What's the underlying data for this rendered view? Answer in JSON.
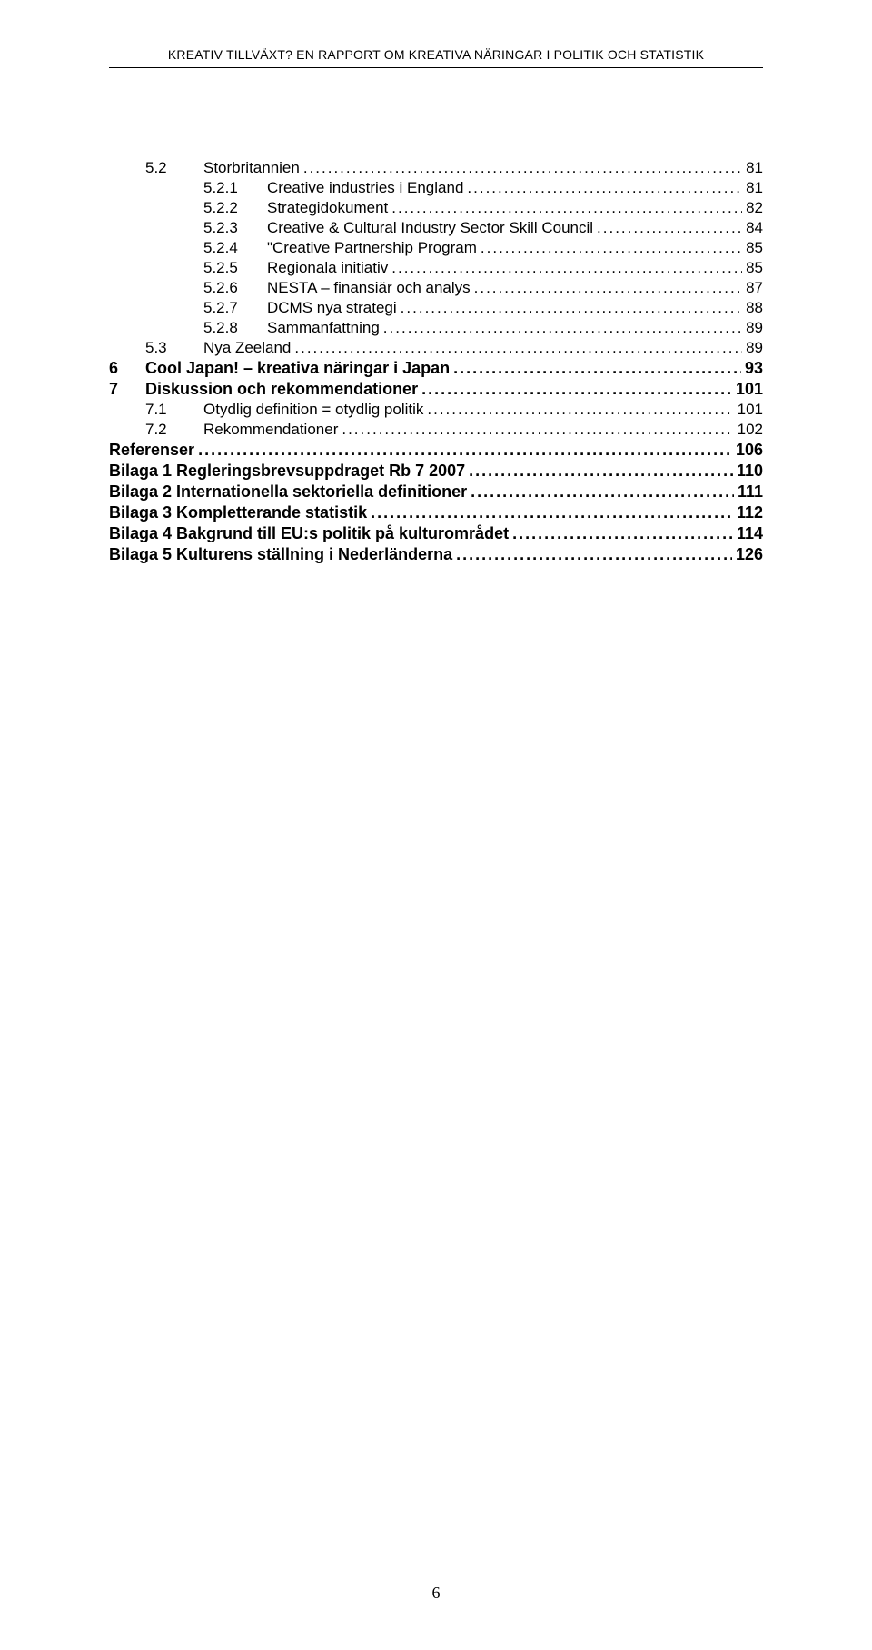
{
  "header": {
    "text": "KREATIV TILLVÄXT? EN RAPPORT OM KREATIVA NÄRINGAR I POLITIK OCH STATISTIK"
  },
  "toc": [
    {
      "level": "lvl2",
      "num": "5.2",
      "title": "Storbritannien",
      "page": "81"
    },
    {
      "level": "lvl3",
      "num": "5.2.1",
      "title": "Creative industries i England",
      "page": "81"
    },
    {
      "level": "lvl3",
      "num": "5.2.2",
      "title": "Strategidokument",
      "page": "82"
    },
    {
      "level": "lvl3",
      "num": "5.2.3",
      "title": "Creative & Cultural Industry Sector Skill Council",
      "page": "84"
    },
    {
      "level": "lvl3",
      "num": "5.2.4",
      "title": "\"Creative Partnership Program",
      "page": "85"
    },
    {
      "level": "lvl3",
      "num": "5.2.5",
      "title": "Regionala initiativ",
      "page": "85"
    },
    {
      "level": "lvl3",
      "num": "5.2.6",
      "title": "NESTA – finansiär och analys",
      "page": "87"
    },
    {
      "level": "lvl3",
      "num": "5.2.7",
      "title": "DCMS nya strategi",
      "page": "88"
    },
    {
      "level": "lvl3",
      "num": "5.2.8",
      "title": "Sammanfattning",
      "page": "89"
    },
    {
      "level": "lvl2",
      "num": "5.3",
      "title": "Nya Zeeland",
      "page": "89"
    },
    {
      "level": "lvl1",
      "num": "6",
      "title": "Cool Japan! – kreativa näringar i Japan",
      "page": "93"
    },
    {
      "level": "lvl1",
      "num": "7",
      "title": "Diskussion och rekommendationer",
      "page": "101"
    },
    {
      "level": "lvl2",
      "num": "7.1",
      "title": "Otydlig definition = otydlig politik",
      "page": "101"
    },
    {
      "level": "lvl2",
      "num": "7.2",
      "title": "Rekommendationer",
      "page": "102"
    },
    {
      "level": "lvl-top",
      "num": "",
      "title": "Referenser",
      "page": "106"
    },
    {
      "level": "lvl-top",
      "num": "",
      "title": "Bilaga 1 Regleringsbrevsuppdraget Rb 7 2007",
      "page": "110"
    },
    {
      "level": "lvl-top",
      "num": "",
      "title": "Bilaga 2 Internationella sektoriella definitioner",
      "page": "111"
    },
    {
      "level": "lvl-top",
      "num": "",
      "title": "Bilaga 3 Kompletterande statistik",
      "page": "112"
    },
    {
      "level": "lvl-top",
      "num": "",
      "title": "Bilaga 4 Bakgrund till EU:s politik på kulturområdet",
      "page": "114"
    },
    {
      "level": "lvl-top",
      "num": "",
      "title": "Bilaga 5 Kulturens ställning i Nederländerna",
      "page": "126"
    }
  ],
  "footer": {
    "page_number": "6"
  }
}
